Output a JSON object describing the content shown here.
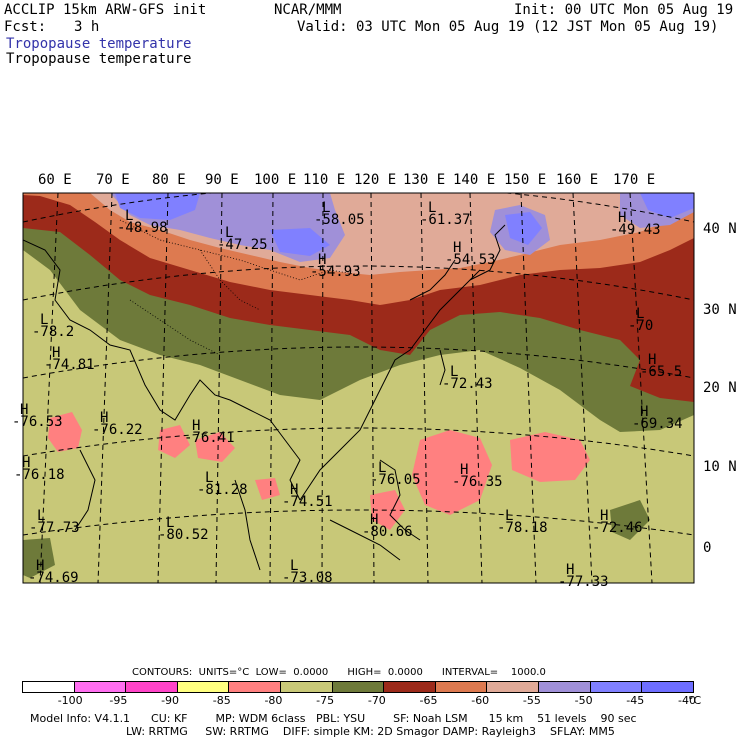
{
  "header": {
    "title": "ACCLIP 15km ARW-GFS init",
    "org": "NCAR/MMM",
    "init": "Init: 00 UTC Mon 05 Aug 19",
    "fcst_label": "Fcst:",
    "fcst_value": "3 h",
    "valid": "Valid: 03 UTC Mon 05 Aug 19 (12 JST Mon 05 Aug 19)",
    "field_name_1": "Tropopause temperature",
    "field_name_2": "Tropopause temperature"
  },
  "map": {
    "lon_labels": [
      "60 E",
      "70 E",
      "80 E",
      "90 E",
      "100 E",
      "110 E",
      "120 E",
      "130 E",
      "140 E",
      "150 E",
      "160 E",
      "170 E"
    ],
    "lat_labels": [
      "40 N",
      "30 N",
      "20 N",
      "10 N",
      "0"
    ],
    "extrema": [
      {
        "type": "L",
        "value": "-48.98"
      },
      {
        "type": "L",
        "value": "-47.25"
      },
      {
        "type": "L",
        "value": "-58.05"
      },
      {
        "type": "L",
        "value": "-61.37"
      },
      {
        "type": "H",
        "value": "-54.93"
      },
      {
        "type": "H",
        "value": "-54.53"
      },
      {
        "type": "H",
        "value": "-49.43"
      },
      {
        "type": "L",
        "value": "-78.2"
      },
      {
        "type": "H",
        "value": "-74.81"
      },
      {
        "type": "L",
        "value": "-70"
      },
      {
        "type": "H",
        "value": "-65.5"
      },
      {
        "type": "L",
        "value": "-72.43"
      },
      {
        "type": "H",
        "value": "-69.34"
      },
      {
        "type": "H",
        "value": "-76.53"
      },
      {
        "type": "H",
        "value": "-76.22"
      },
      {
        "type": "H",
        "value": "-76.41"
      },
      {
        "type": "H",
        "value": "-76.18"
      },
      {
        "type": "L",
        "value": "-81.28"
      },
      {
        "type": "H",
        "value": "-74.51"
      },
      {
        "type": "L",
        "value": "-76.05"
      },
      {
        "type": "H",
        "value": "-76.35"
      },
      {
        "type": "L",
        "value": "-77.73"
      },
      {
        "type": "L",
        "value": "-80.52"
      },
      {
        "type": "H",
        "value": "-80.66"
      },
      {
        "type": "L",
        "value": "-78.18"
      },
      {
        "type": "H",
        "value": "-72.46"
      },
      {
        "type": "H",
        "value": "-74.69"
      },
      {
        "type": "L",
        "value": "-73.08"
      },
      {
        "type": "H",
        "value": "-77.33"
      }
    ]
  },
  "colorbar": {
    "info": "CONTOURS:  UNITS=°C  LOW=  0.0000      HIGH=  0.0000      INTERVAL=    1000.0",
    "colors": [
      "#ffffff",
      "#ff6ef0",
      "#ff44c8",
      "#ffff80",
      "#ff8080",
      "#c8c878",
      "#6e7a3a",
      "#9c2a1a",
      "#dd7a50",
      "#e0aa98",
      "#a090d8",
      "#8080ff",
      "#6e6eff"
    ],
    "tick_labels": [
      "-100",
      "-95",
      "-90",
      "-85",
      "-80",
      "-75",
      "-70",
      "-65",
      "-60",
      "-55",
      "-50",
      "-45",
      "-40",
      "°C"
    ]
  },
  "model_info": {
    "line1": "Model Info: V4.1.1      CU: KF        MP: WDM 6class   PBL: YSU        SF: Noah LSM      15 km    51 levels    90 sec",
    "line2": "LW: RRTMG     SW: RRTMG    DIFF: simple KM: 2D Smagor DAMP: Rayleigh3    SFLAY: MM5"
  }
}
